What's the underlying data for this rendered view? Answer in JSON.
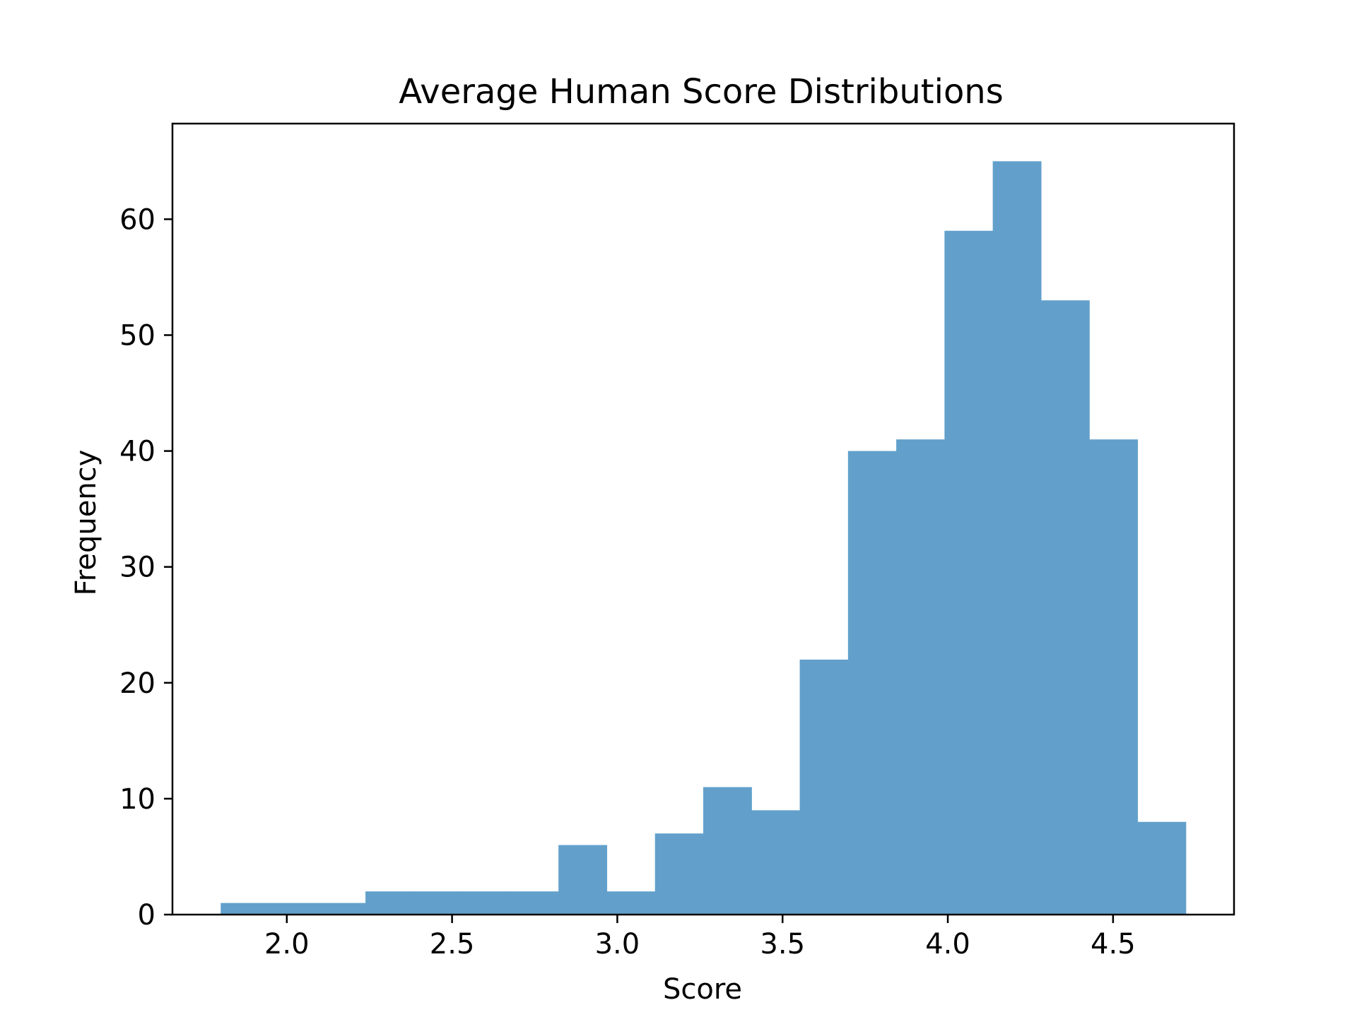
{
  "chart_data": {
    "type": "bar",
    "title": "Average Human Score Distributions",
    "xlabel": "Score",
    "ylabel": "Frequency",
    "bin_edges": [
      1.8,
      1.946,
      2.092,
      2.238,
      2.384,
      2.53,
      2.676,
      2.822,
      2.968,
      3.114,
      3.26,
      3.406,
      3.552,
      3.698,
      3.844,
      3.99,
      4.136,
      4.282,
      4.428,
      4.574,
      4.72
    ],
    "values": [
      1,
      1,
      1,
      2,
      2,
      2,
      2,
      6,
      2,
      7,
      11,
      9,
      22,
      40,
      41,
      59,
      65,
      53,
      41,
      8
    ],
    "xlim": [
      1.654,
      4.866
    ],
    "ylim": [
      0,
      68.25
    ],
    "xticks": [
      "2.0",
      "2.5",
      "3.0",
      "3.5",
      "4.0",
      "4.5"
    ],
    "yticks": [
      "0",
      "10",
      "20",
      "30",
      "40",
      "50",
      "60"
    ],
    "bar_color": "#62a0cb",
    "grid": false,
    "legend": "none"
  }
}
